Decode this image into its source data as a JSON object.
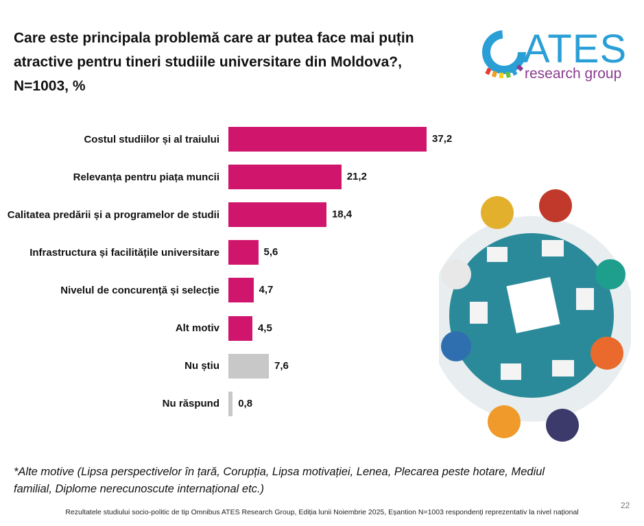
{
  "chart_data": {
    "type": "bar",
    "orientation": "horizontal",
    "title": "Care este principala problemă care ar putea face mai puțin\natractive pentru tineri studiile universitare din Moldova?,\nN=1003, %",
    "categories": [
      "Costul studiilor și al traiului",
      "Relevanța pentru piața muncii",
      "Calitatea predării și a programelor de studii",
      "Infrastructura și facilitățile universitare",
      "Nivelul de concurență și selecție",
      "Alt motiv",
      "Nu știu",
      "Nu răspund"
    ],
    "values": [
      37.2,
      21.2,
      18.4,
      5.6,
      4.7,
      4.5,
      7.6,
      0.8
    ],
    "value_labels": [
      "37,2",
      "21,2",
      "18,4",
      "5,6",
      "4,7",
      "4,5",
      "7,6",
      "0,8"
    ],
    "colors": [
      "#d0166c",
      "#d0166c",
      "#d0166c",
      "#d0166c",
      "#d0166c",
      "#d0166c",
      "#c8c8c8",
      "#c8c8c8"
    ],
    "footnote": "*Alte motive (Lipsa perspectivelor în țară, Corupția, Lipsa motivației, Lenea, Plecarea peste hotare, Mediul familial, Diplome nerecunoscute internațional etc.)",
    "source": "Rezultatele studiului socio-politic de tip Omnibus ATES Research Group, Ediția lunii Noiembrie 2025, Eșantion N=1003 respondenți reprezentativ la nivel național",
    "page_number": "22",
    "logo": {
      "name": "ATES",
      "tagline": "research group"
    }
  }
}
